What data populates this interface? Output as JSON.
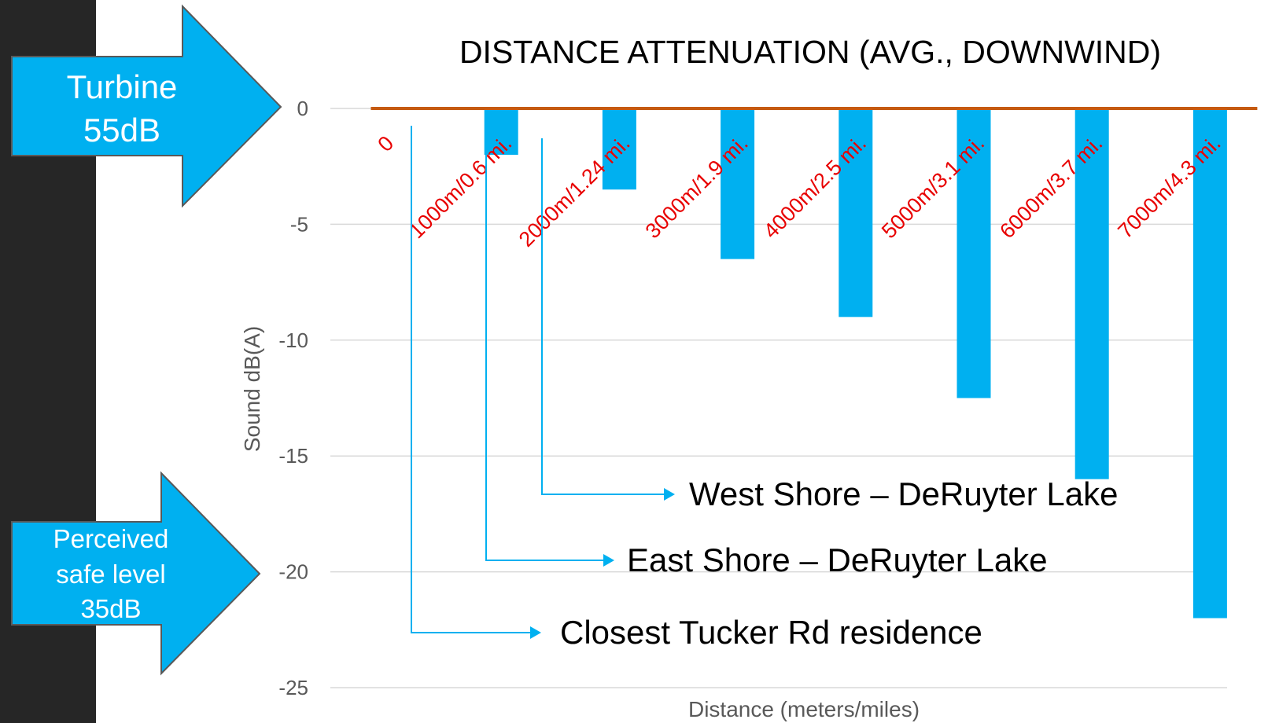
{
  "chart_data": {
    "type": "bar",
    "title": "DISTANCE ATTENUATION (AVG., DOWNWIND)",
    "xlabel": "Distance (meters/miles)",
    "ylabel": "Sound dB(A)",
    "ylim": [
      -25,
      0
    ],
    "yticks": [
      0,
      -5,
      -10,
      -15,
      -20,
      -25
    ],
    "grid": true,
    "categories": [
      "0",
      "1000m/0.6 mi.",
      "2000m/1.24 mi.",
      "3000m/1.9 mi.",
      "4000m/2.5 mi.",
      "5000m/3.1 mi.",
      "6000m/3.7 mi.",
      "7000m/4.3 mi."
    ],
    "values": [
      0,
      -2,
      -3.5,
      -6.5,
      -9,
      -12.5,
      -16,
      -22
    ],
    "colors": {
      "bar": "#00b0f0",
      "line": "#c55a11",
      "category_label": "#e80000"
    }
  },
  "callouts": [
    {
      "text": "West Shore – DeRuyter Lake",
      "category": "2000m/1.24 mi.",
      "color": "#00b0f0"
    },
    {
      "text": "East Shore – DeRuyter Lake",
      "category": "1000m/0.6 mi.",
      "color": "#00b0f0"
    },
    {
      "text": "Closest Tucker Rd residence",
      "category": "0",
      "color": "#00b0f0"
    }
  ],
  "side_arrows": {
    "turbine": {
      "line1": "Turbine",
      "line2": "55dB",
      "color": "#00b0f0",
      "value": 0
    },
    "safe": {
      "line1": "Perceived",
      "line2": "safe level",
      "line3": "35dB",
      "color": "#00b0f0",
      "value": -20
    }
  }
}
